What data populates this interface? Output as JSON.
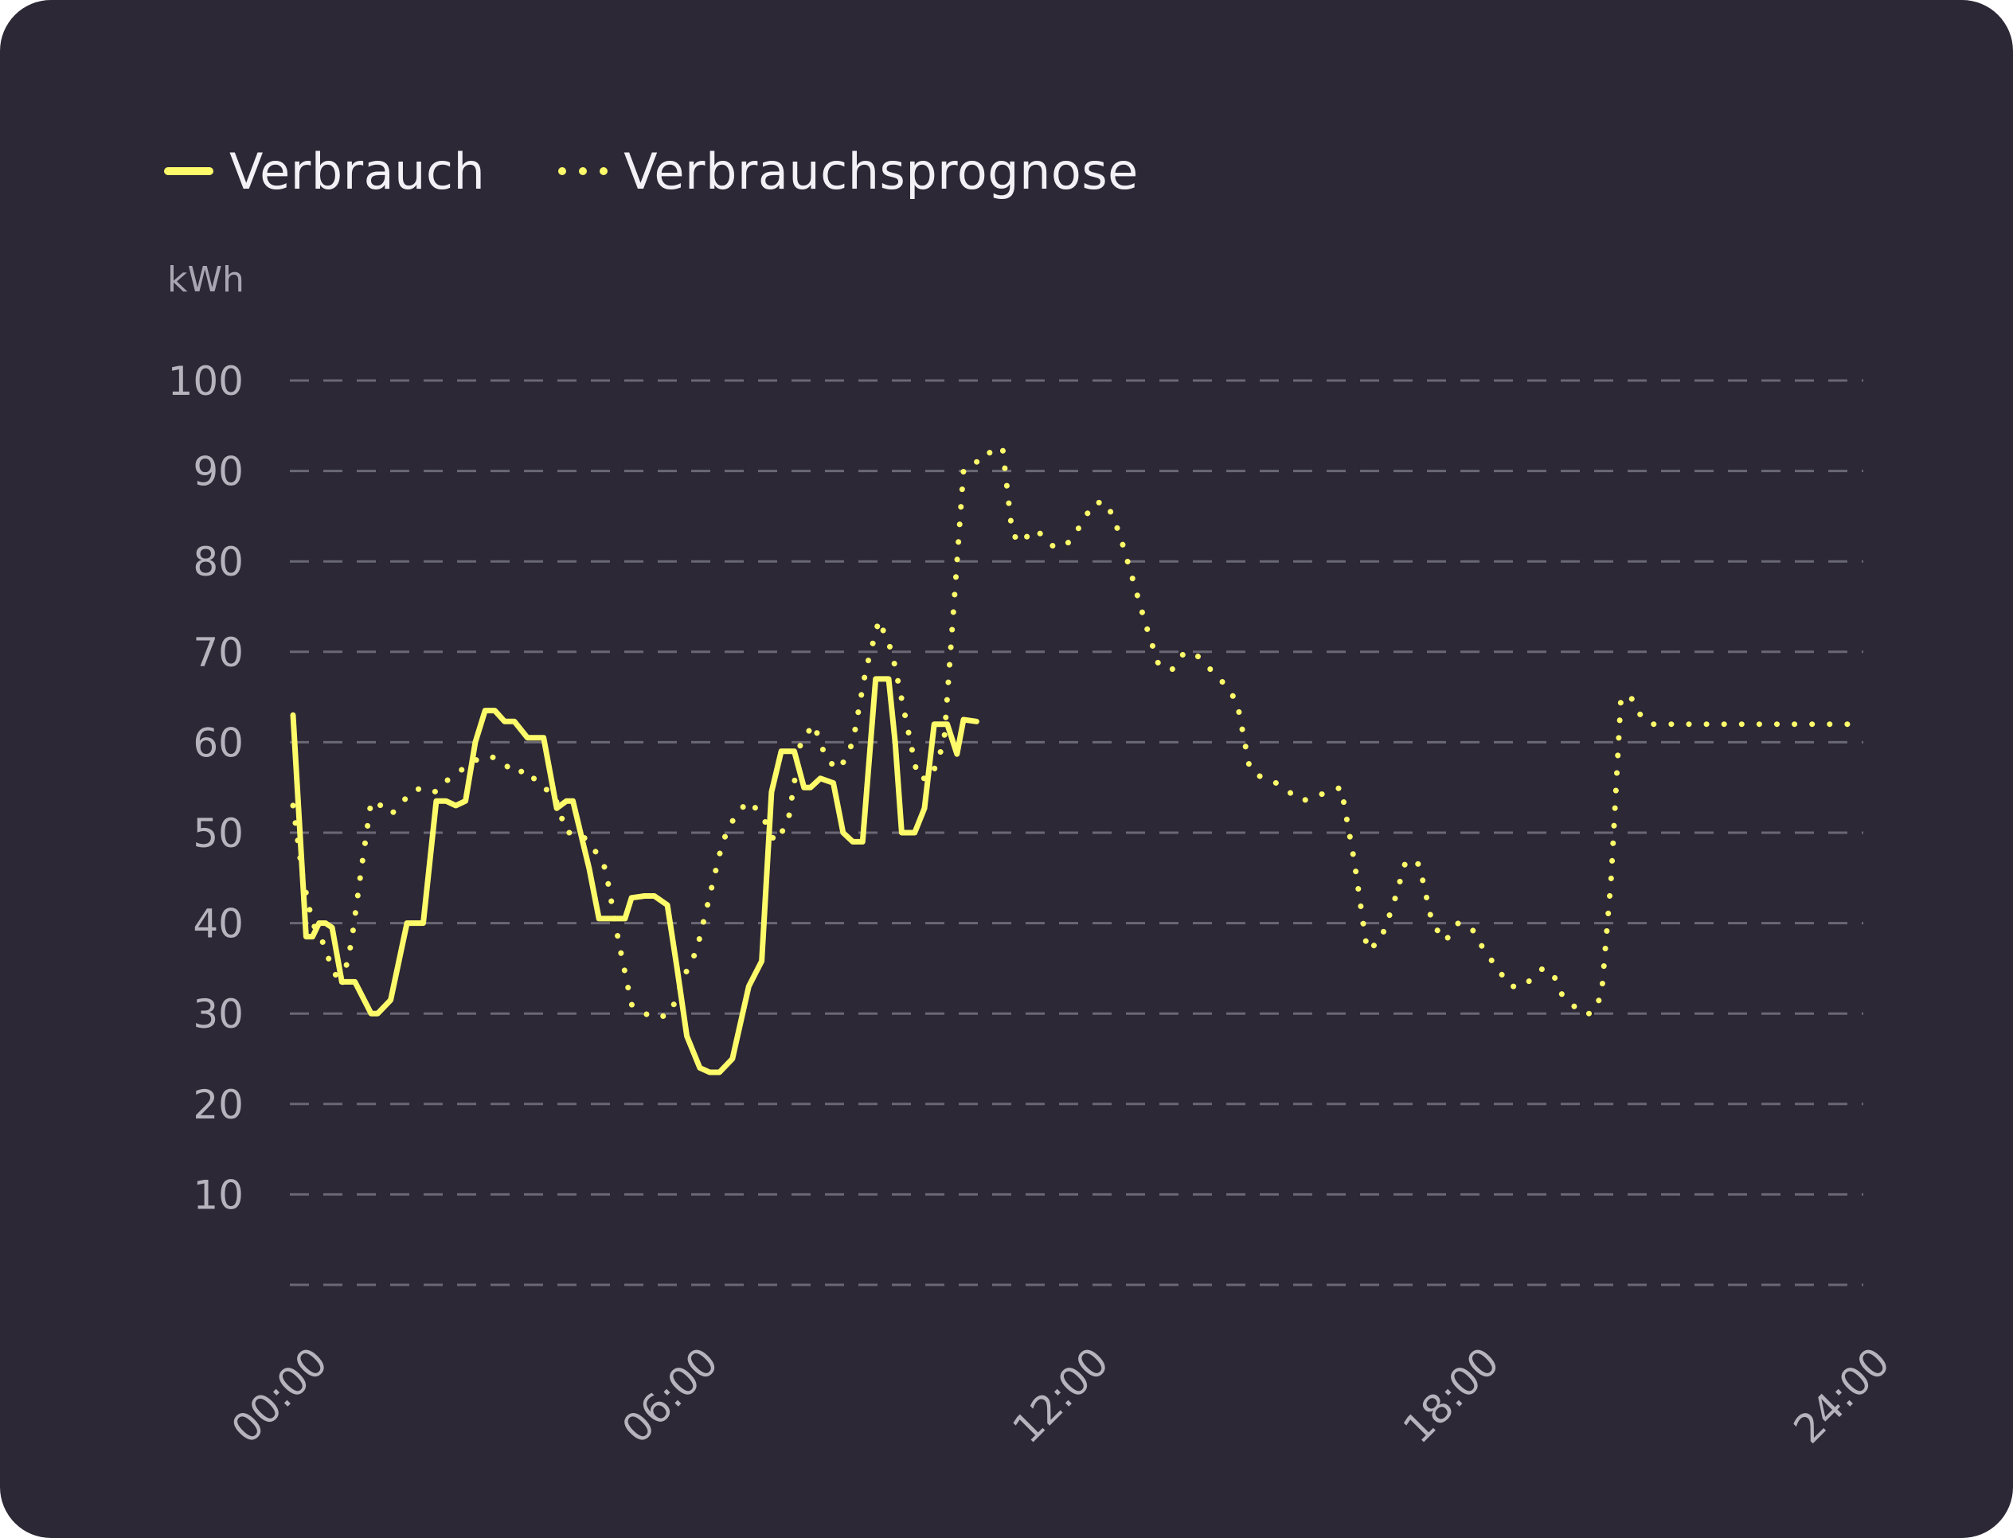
{
  "colors": {
    "background": "#2c2836",
    "series": "#fdfb6a",
    "grid": "#6b6875",
    "tick_text": "#b6b3bd"
  },
  "legend": {
    "items": [
      {
        "label": "Verbrauch",
        "style": "solid"
      },
      {
        "label": "Verbrauchsprognose",
        "style": "dotted"
      }
    ]
  },
  "chart_data": {
    "type": "line",
    "ylabel": "kWh",
    "ylim": [
      0,
      100
    ],
    "yticks": [
      10,
      20,
      30,
      40,
      50,
      60,
      70,
      80,
      90,
      100
    ],
    "xlim": [
      0,
      24
    ],
    "xticks": [
      "00:00",
      "06:00",
      "12:00",
      "18:00",
      "24:00"
    ],
    "grid": true,
    "legend_position": "top-left",
    "series": [
      {
        "name": "Verbrauch",
        "style": "solid",
        "x": [
          0.0,
          0.2,
          0.3,
          0.4,
          0.5,
          0.6,
          0.75,
          0.95,
          1.2,
          1.3,
          1.5,
          1.75,
          1.85,
          2.0,
          2.2,
          2.35,
          2.5,
          2.65,
          2.8,
          2.95,
          3.1,
          3.25,
          3.4,
          3.6,
          3.85,
          4.05,
          4.2,
          4.3,
          4.45,
          4.55,
          4.7,
          5.1,
          5.2,
          5.4,
          5.55,
          5.75,
          5.9,
          6.05,
          6.25,
          6.4,
          6.55,
          6.75,
          7.0,
          7.2,
          7.35,
          7.5,
          7.6,
          7.7,
          7.85,
          7.95,
          8.1,
          8.3,
          8.45,
          8.6,
          8.75,
          8.95,
          9.15,
          9.25,
          9.35,
          9.55,
          9.7,
          9.85,
          10.05,
          10.2,
          10.3,
          10.5
        ],
        "y": [
          63,
          38.5,
          38.5,
          40,
          40,
          39.5,
          33.5,
          33.5,
          30,
          30,
          31.5,
          40,
          40,
          40,
          53.5,
          53.5,
          53,
          53.5,
          60,
          63.5,
          63.5,
          62.3,
          62.3,
          60.5,
          60.5,
          52.7,
          53.5,
          53.5,
          49,
          46,
          40.5,
          40.5,
          42.8,
          43,
          43,
          42,
          35,
          27.5,
          24,
          23.5,
          23.5,
          25,
          33,
          35.8,
          54.5,
          59,
          59,
          59,
          55,
          55,
          56,
          55.5,
          50,
          49,
          49,
          67,
          67,
          60,
          50,
          50,
          52.7,
          62,
          62,
          58.7,
          62.5,
          62.3
        ],
        "_note_": ""
      },
      {
        "name": "Verbrauchsprognose",
        "style": "dotted",
        "x": [
          0.0,
          0.15,
          0.3,
          0.45,
          0.6,
          0.75,
          0.9,
          1.05,
          1.2,
          1.35,
          1.5,
          1.65,
          1.8,
          2.0,
          2.2,
          2.4,
          2.6,
          2.8,
          3.0,
          3.2,
          3.4,
          3.6,
          3.8,
          4.0,
          4.2,
          4.4,
          4.6,
          4.8,
          5.0,
          5.2,
          5.4,
          5.6,
          5.8,
          6.0,
          6.2,
          6.4,
          6.6,
          6.8,
          7.0,
          7.2,
          7.4,
          7.6,
          7.8,
          8.0,
          8.2,
          8.4,
          8.6,
          8.8,
          9.0,
          9.2,
          9.4,
          9.6,
          9.8,
          10.0,
          10.15,
          10.3,
          10.45,
          10.6,
          10.75,
          10.9,
          11.05,
          11.2,
          11.35,
          11.5,
          11.7,
          11.9,
          12.1,
          12.3,
          12.5,
          12.7,
          12.9,
          13.1,
          13.3,
          13.5,
          13.7,
          13.9,
          14.1,
          14.3,
          14.5,
          14.7,
          14.9,
          15.1,
          15.3,
          15.5,
          15.7,
          15.9,
          16.1,
          16.3,
          16.5,
          16.7,
          16.9,
          17.1,
          17.3,
          17.5,
          17.7,
          17.9,
          18.1,
          18.3,
          18.5,
          18.7,
          18.9,
          19.05,
          19.2,
          19.35,
          19.5,
          19.65,
          19.8,
          19.95,
          20.1,
          20.25,
          20.4,
          20.55,
          20.7,
          20.85,
          21.0,
          21.2,
          21.4,
          21.6,
          21.8,
          22.0,
          22.2,
          22.4,
          22.6,
          22.8,
          23.0,
          23.15,
          23.3,
          23.45,
          23.6,
          23.75,
          23.9,
          24.0
        ],
        "y": [
          53,
          45,
          40,
          38,
          35,
          33,
          38,
          46,
          53.5,
          53,
          52,
          53,
          54.5,
          55,
          54.5,
          56,
          57,
          58,
          58.5,
          58,
          56.5,
          57,
          55,
          54.5,
          50,
          50,
          48.5,
          46,
          38,
          31,
          30,
          29.5,
          30,
          34,
          37,
          43,
          49,
          52,
          53.5,
          52,
          49,
          51,
          60,
          62,
          58,
          57,
          60,
          68,
          73.5,
          70,
          63,
          56,
          56,
          60,
          75,
          90,
          91,
          91,
          92.5,
          92.5,
          83,
          82,
          83.5,
          83,
          81.5,
          82,
          84,
          86.5,
          86.5,
          83,
          78,
          73,
          68.5,
          68,
          70,
          69.5,
          68,
          66.5,
          64.5,
          57,
          56,
          55.5,
          54.5,
          53.5,
          54,
          54.5,
          55,
          47,
          37,
          38,
          42,
          47,
          46.5,
          40,
          38,
          40,
          39.5,
          37,
          35,
          33,
          33,
          34,
          35,
          34.5,
          32,
          31,
          30,
          30,
          32,
          45,
          65,
          65,
          63,
          62,
          62,
          62,
          62,
          62,
          62,
          62,
          62,
          62,
          62,
          62,
          62,
          62,
          62,
          62,
          62,
          62,
          62,
          62
        ]
      }
    ]
  }
}
